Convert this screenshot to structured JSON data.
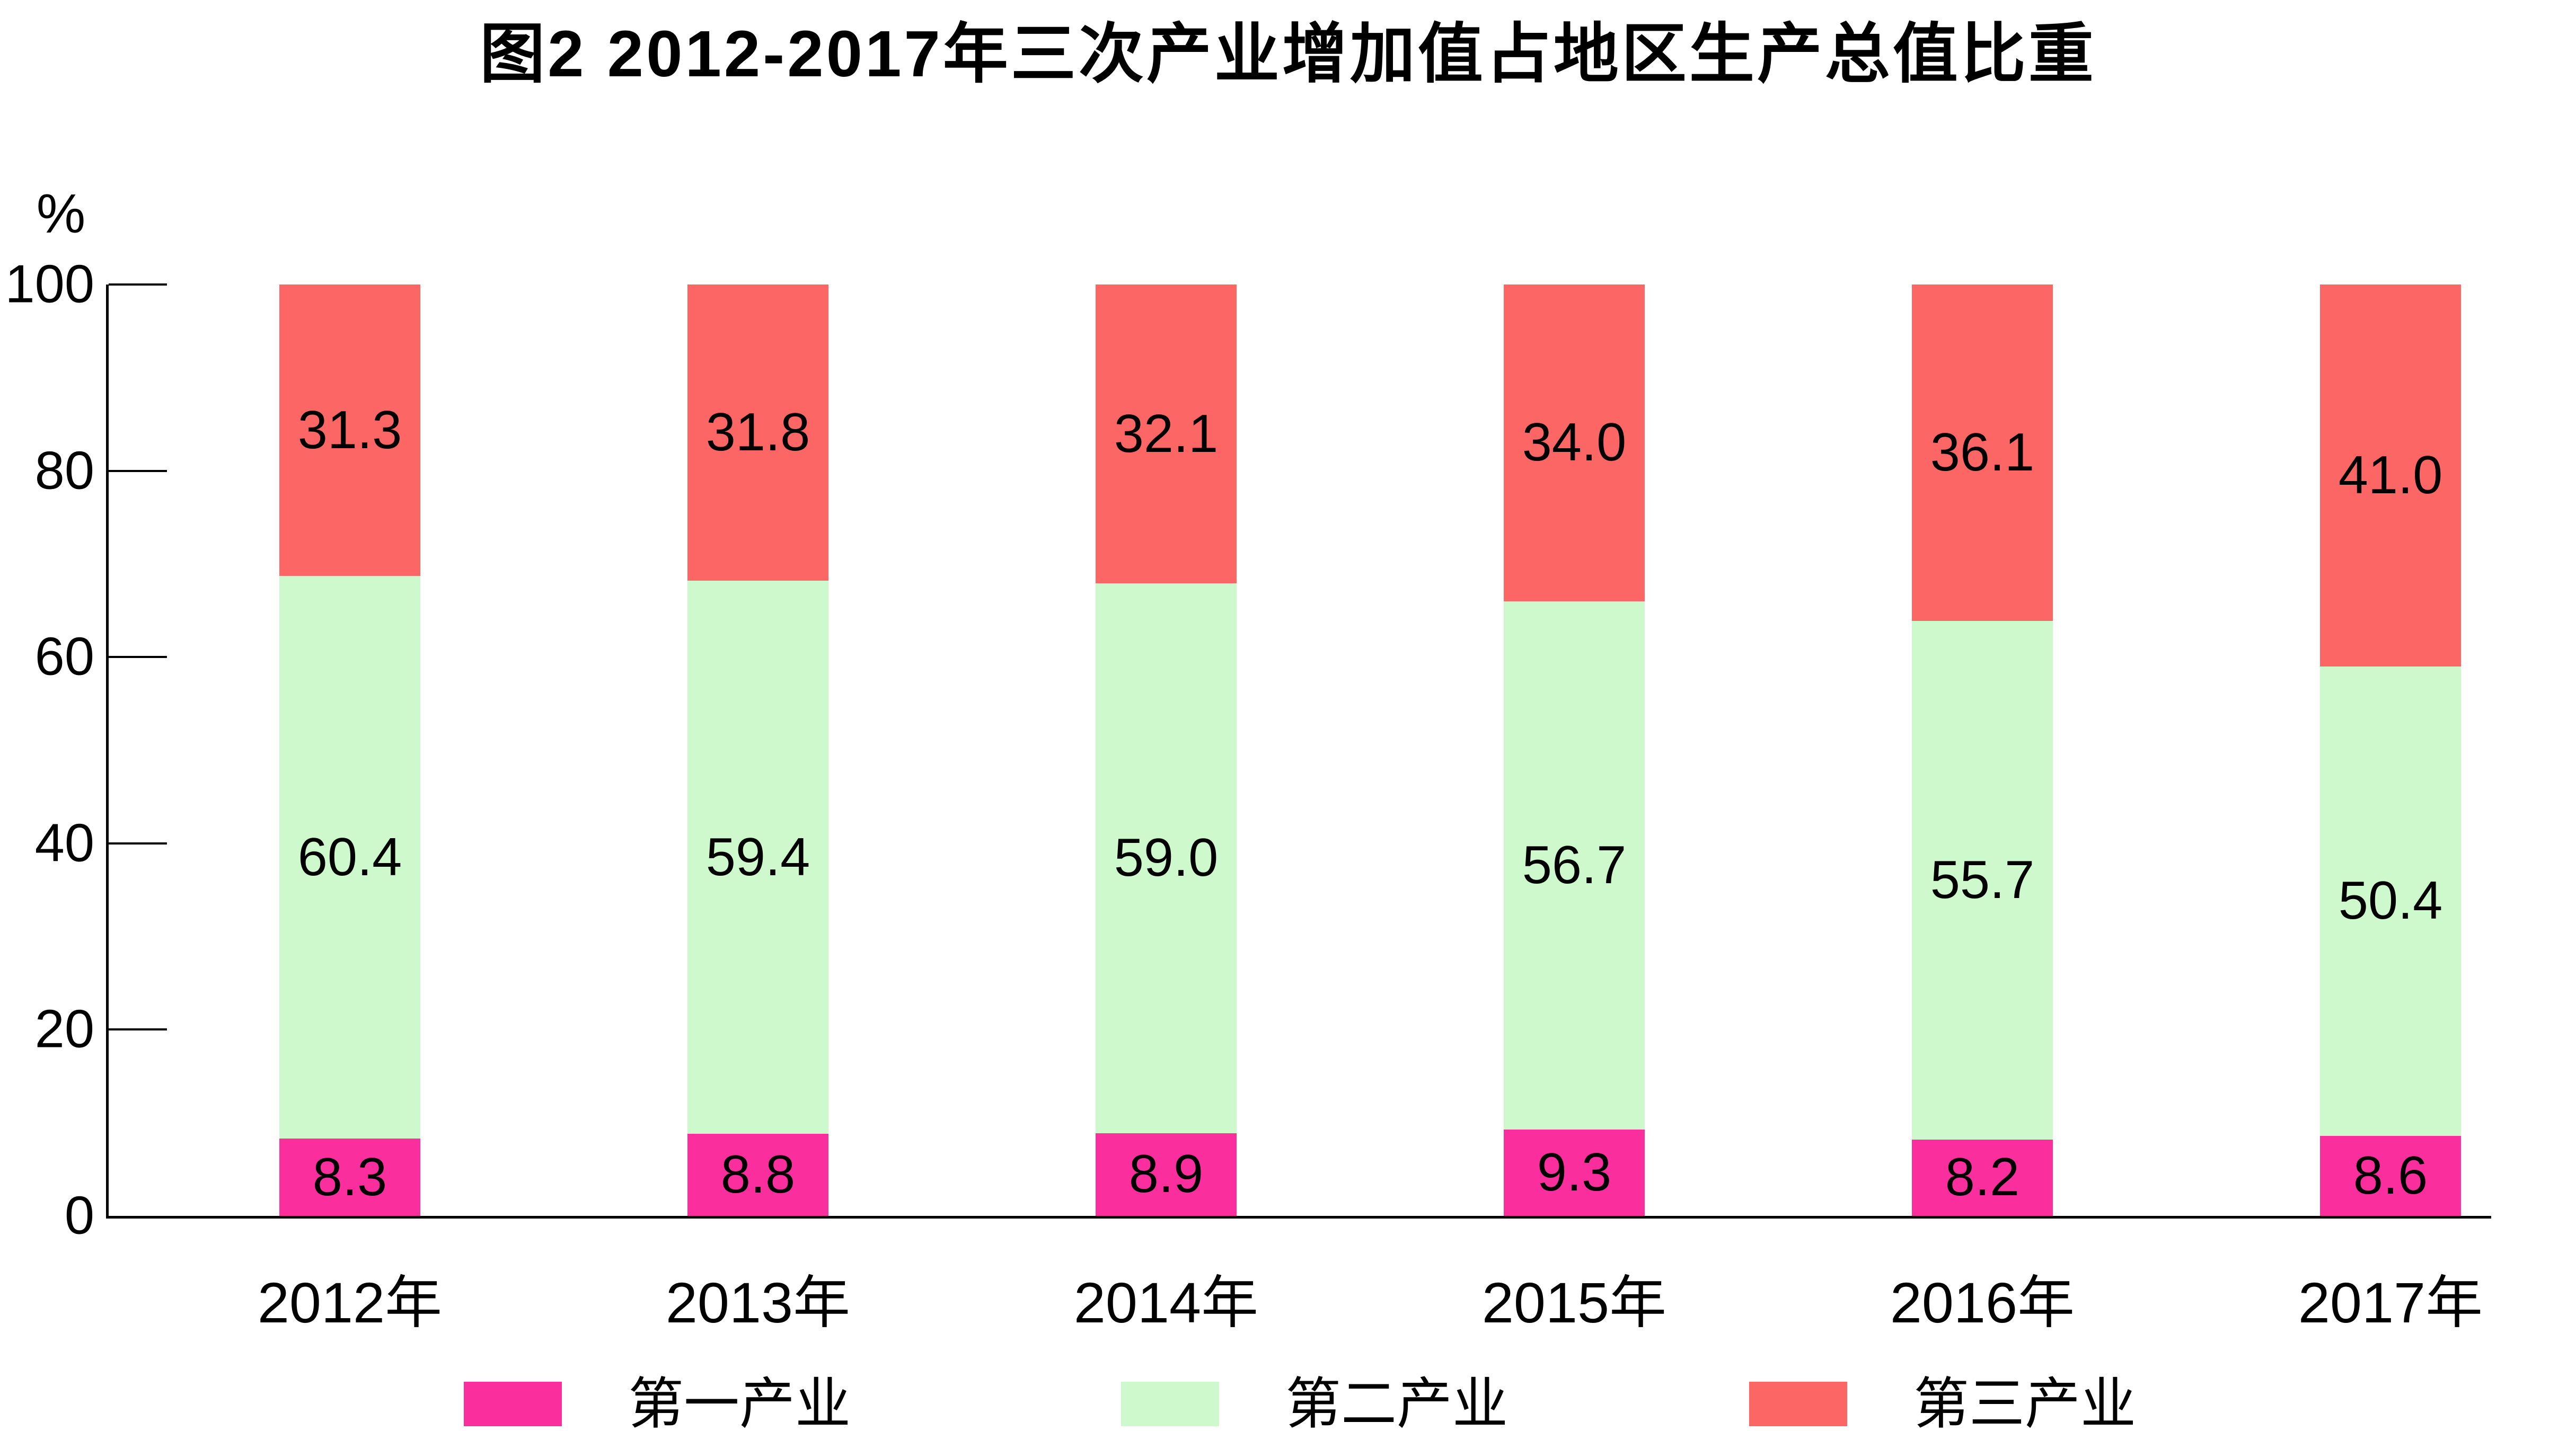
{
  "title": "图2  2012-2017年三次产业增加值占地区生产总值比重",
  "chart_data": {
    "type": "bar",
    "stacked": true,
    "title": "图2  2012-2017年三次产业增加值占地区生产总值比重",
    "categories": [
      "2012年",
      "2013年",
      "2014年",
      "2015年",
      "2016年",
      "2017年"
    ],
    "series": [
      {
        "name": "第一产业",
        "color": "#FA2F9D",
        "values": [
          8.3,
          8.8,
          8.9,
          9.3,
          8.2,
          8.6
        ]
      },
      {
        "name": "第二产业",
        "color": "#CDF9CC",
        "values": [
          60.4,
          59.4,
          59.0,
          56.7,
          55.7,
          50.4
        ]
      },
      {
        "name": "第三产业",
        "color": "#FC6665",
        "values": [
          31.3,
          31.8,
          32.1,
          34.0,
          36.1,
          41.0
        ]
      }
    ],
    "y_axis": {
      "unit": "%",
      "ticks": [
        0,
        20,
        40,
        60,
        80,
        100
      ],
      "range": [
        0,
        100
      ]
    },
    "value_label_decimals": 1,
    "legend_position": "bottom",
    "grid": false
  }
}
